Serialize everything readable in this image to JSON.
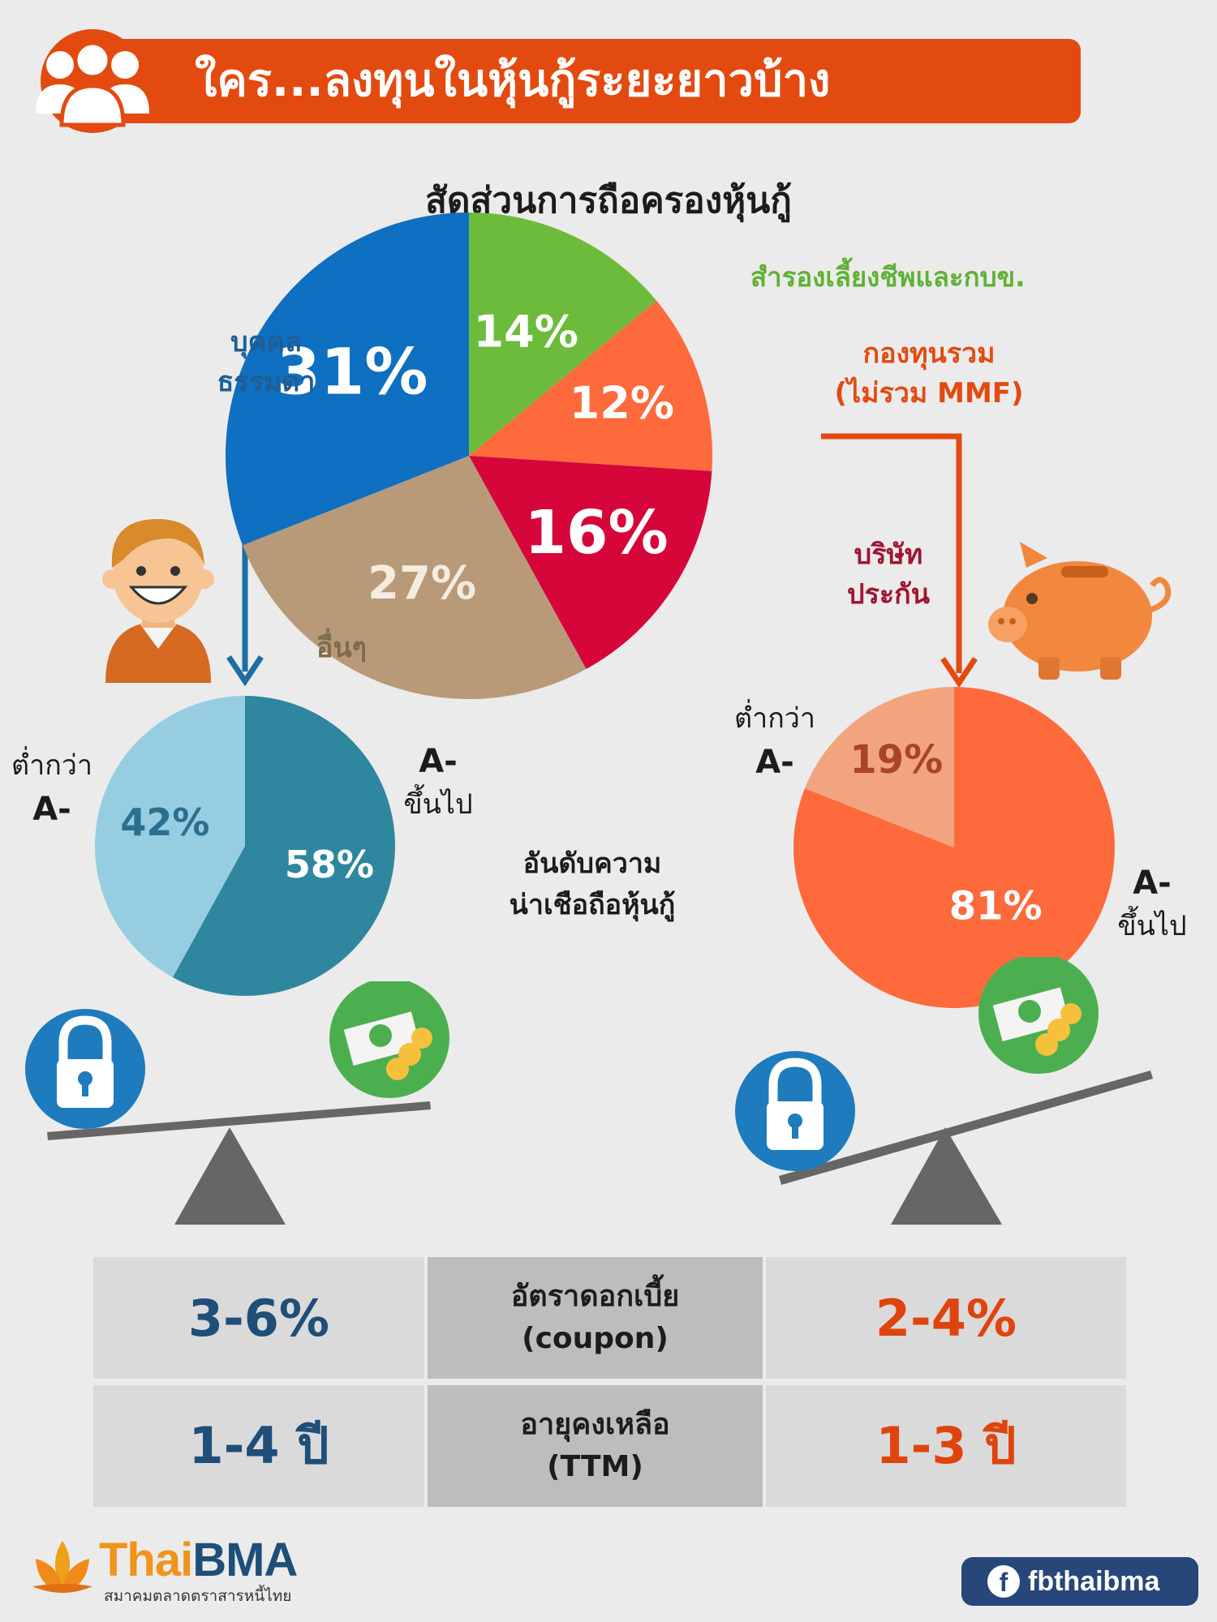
{
  "header": {
    "title": "ใคร...ลงทุนในหุ้นกู้ระยะยาวบ้าง",
    "icon": "people-group-icon"
  },
  "colors": {
    "brand_orange": "#e34a10",
    "blue": "#0f6fc0",
    "green": "#6dbb3b",
    "orange": "#ff6a3d",
    "crimson": "#d6063a",
    "tan": "#b89a78",
    "teal_dark": "#2f869f",
    "teal_light": "#97cde0",
    "peach": "#f1a47e",
    "table_blue": "#1f4e79",
    "table_orange": "#e0440e"
  },
  "chart_data": [
    {
      "type": "pie",
      "title": "สัดส่วนการถือครองหุ้นกู้",
      "slices": [
        {
          "label": "สำรองเลี้ยงชีพและกบข.",
          "value": 14,
          "value_label": "14%",
          "color": "#6dbb3b"
        },
        {
          "label": "กองทุนรวม (ไม่รวม MMF)",
          "label_lines": [
            "กองทุนรวม",
            "(ไม่รวม MMF)"
          ],
          "value": 12,
          "value_label": "12%",
          "color": "#ff6a3d"
        },
        {
          "label": "บริษัท ประกัน",
          "label_lines": [
            "บริษัท",
            "ประกัน"
          ],
          "value": 16,
          "value_label": "16%",
          "color": "#d6063a"
        },
        {
          "label": "อื่นๆ",
          "value": 27,
          "value_label": "27%",
          "color": "#b89a78"
        },
        {
          "label": "บุคคล ธรรมดา",
          "label_lines": [
            "บุคคล",
            "ธรรมดา"
          ],
          "value": 31,
          "value_label": "31%",
          "color": "#0f6fc0"
        }
      ]
    },
    {
      "type": "pie",
      "title": "อันดับความ น่าเชือถือหุ้นกู้",
      "group": "บุคคล ธรรมดา",
      "slices": [
        {
          "label": "A- ขึ้นไป",
          "label_lines": [
            "A-",
            "ขึ้นไป"
          ],
          "value": 58,
          "value_label": "58%",
          "color": "#2f869f"
        },
        {
          "label": "ต่ำกว่า A-",
          "label_lines": [
            "ต่ำกว่า",
            "A-"
          ],
          "value": 42,
          "value_label": "42%",
          "color": "#97cde0"
        }
      ]
    },
    {
      "type": "pie",
      "title": "อันดับความ น่าเชือถือหุ้นกู้",
      "group": "กองทุนรวม (ไม่รวม MMF)",
      "slices": [
        {
          "label": "A- ขึ้นไป",
          "label_lines": [
            "A-",
            "ขึ้นไป"
          ],
          "value": 81,
          "value_label": "81%",
          "color": "#ff6a3d"
        },
        {
          "label": "ต่ำกว่า A-",
          "label_lines": [
            "ต่ำกว่า",
            "A-"
          ],
          "value": 19,
          "value_label": "19%",
          "color": "#f1a47e"
        }
      ]
    }
  ],
  "rating_note": [
    "อันดับความ",
    "น่าเชือถือหุ้นกู้"
  ],
  "icons": {
    "person": "smiling-person-icon",
    "piggy": "piggy-bank-icon",
    "lock": "padlock-icon",
    "money": "money-coins-icon",
    "balance": "seesaw-balance-icon"
  },
  "table": {
    "rows": [
      {
        "left": "3-6%",
        "middle": [
          "อัตราดอกเบี้ย",
          "(coupon)"
        ],
        "right": "2-4%"
      },
      {
        "left": "1-4 ปี",
        "middle": [
          "อายุคงเหลือ",
          "(TTM)"
        ],
        "right": "1-3 ปี"
      }
    ]
  },
  "footer": {
    "logo_text": "ThaiBMA",
    "logo_thai": "Thai",
    "logo_bma": "BMA",
    "logo_subtitle": "สมาคมตลาดตราสารหนี้ไทย",
    "facebook": "fbthaibma",
    "facebook_icon": "f"
  }
}
